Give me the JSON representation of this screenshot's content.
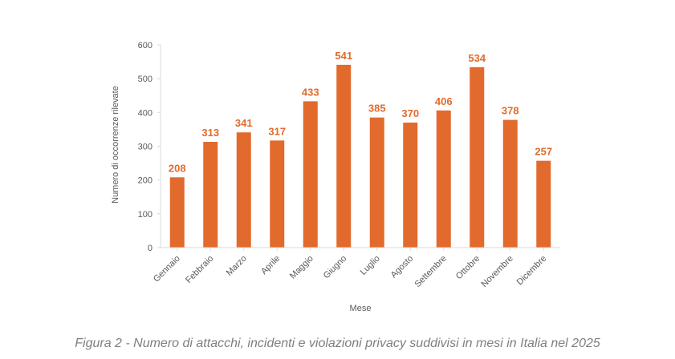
{
  "chart_data": {
    "type": "bar",
    "categories": [
      "Gennaio",
      "Febbraio",
      "Marzo",
      "Aprile",
      "Maggio",
      "Giugno",
      "Luglio",
      "Agosto",
      "Settembre",
      "Ottobre",
      "Novembre",
      "Dicembre"
    ],
    "values": [
      208,
      313,
      341,
      317,
      433,
      541,
      385,
      370,
      406,
      534,
      378,
      257
    ],
    "xlabel": "Mese",
    "ylabel": "Numero di occorrenze rilevate",
    "ylim": [
      0,
      600
    ],
    "yticks": [
      0,
      100,
      200,
      300,
      400,
      500,
      600
    ],
    "bar_color": "#e26a2c",
    "grid": false
  },
  "caption": "Figura 2 - Numero di attacchi, incidenti e violazioni privacy suddivisi in mesi in Italia nel 2025"
}
